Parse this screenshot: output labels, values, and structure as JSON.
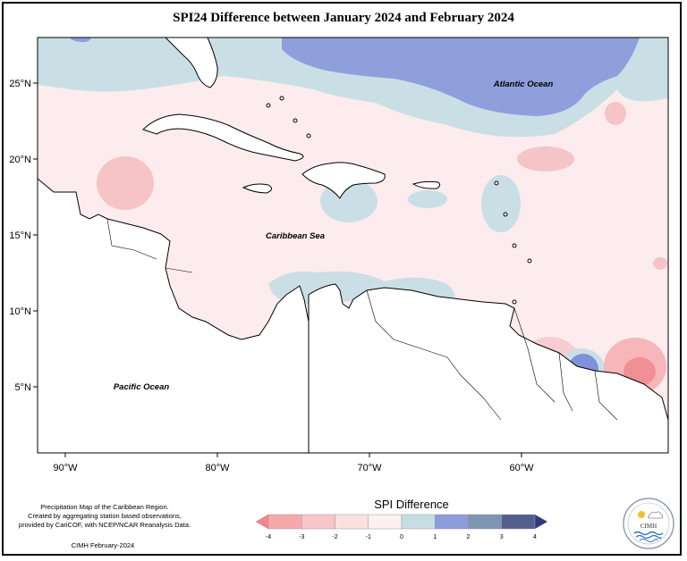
{
  "title": "SPI24 Difference between January 2024 and February 2024",
  "map": {
    "lat_labels": [
      "25°N",
      "20°N",
      "15°N",
      "10°N",
      "5°N"
    ],
    "lon_labels": [
      "90°W",
      "80°W",
      "70°W",
      "60°W"
    ],
    "ocean_labels": {
      "atlantic": "Atlantic Ocean",
      "caribbean": "Caribbean Sea",
      "pacific": "Pacific Ocean"
    }
  },
  "legend": {
    "title": "SPI Difference",
    "ticks": [
      "-4",
      "-3",
      "-2",
      "-1",
      "0",
      "1",
      "2",
      "3",
      "4"
    ],
    "colors": [
      "#f4868a",
      "#f6a9ab",
      "#f8c6c8",
      "#fbe0e2",
      "#fdf0f0",
      "#c7dde4",
      "#8e9cdb",
      "#7d96b4",
      "#525f8f",
      "#2e3a7a"
    ]
  },
  "footer": {
    "line1": "Precipitation Map of the Caribbean Region.",
    "line2": "Created by aggregating station based observations,",
    "line3": "provided by CariCOF, with NCEP/NCAR Reanalysis Data.",
    "credit": "CIMH February-2024"
  },
  "logo": {
    "text": "CIMH",
    "icon": "cimh-logo-icon"
  }
}
